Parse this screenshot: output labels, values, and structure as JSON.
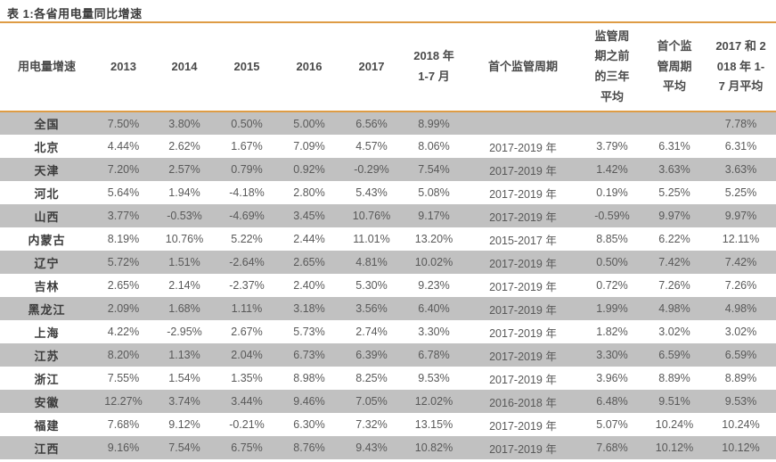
{
  "title": "表 1:各省用电量同比增速",
  "colors": {
    "accent": "#DE9C45",
    "row_stripe": "#C1C1C1",
    "title_text": "#3C3C3C",
    "header_text": "#4A4A4A",
    "data_text": "#595959"
  },
  "chart_data": {
    "type": "table",
    "title": "表 1:各省用电量同比增速",
    "columns": [
      "用电量增速",
      "2013",
      "2014",
      "2015",
      "2016",
      "2017",
      "2018 年 1-7 月",
      "首个监管周期",
      "监管周期之前的三年平均",
      "首个监管周期平均",
      "2017 和 2018 年 1-7 月平均"
    ],
    "rows": [
      [
        "全国",
        "7.50%",
        "3.80%",
        "0.50%",
        "5.00%",
        "6.56%",
        "8.99%",
        "",
        "",
        "",
        "7.78%"
      ],
      [
        "北京",
        "4.44%",
        "2.62%",
        "1.67%",
        "7.09%",
        "4.57%",
        "8.06%",
        "2017-2019 年",
        "3.79%",
        "6.31%",
        "6.31%"
      ],
      [
        "天津",
        "7.20%",
        "2.57%",
        "0.79%",
        "0.92%",
        "-0.29%",
        "7.54%",
        "2017-2019 年",
        "1.42%",
        "3.63%",
        "3.63%"
      ],
      [
        "河北",
        "5.64%",
        "1.94%",
        "-4.18%",
        "2.80%",
        "5.43%",
        "5.08%",
        "2017-2019 年",
        "0.19%",
        "5.25%",
        "5.25%"
      ],
      [
        "山西",
        "3.77%",
        "-0.53%",
        "-4.69%",
        "3.45%",
        "10.76%",
        "9.17%",
        "2017-2019 年",
        "-0.59%",
        "9.97%",
        "9.97%"
      ],
      [
        "内蒙古",
        "8.19%",
        "10.76%",
        "5.22%",
        "2.44%",
        "11.01%",
        "13.20%",
        "2015-2017 年",
        "8.85%",
        "6.22%",
        "12.11%"
      ],
      [
        "辽宁",
        "5.72%",
        "1.51%",
        "-2.64%",
        "2.65%",
        "4.81%",
        "10.02%",
        "2017-2019 年",
        "0.50%",
        "7.42%",
        "7.42%"
      ],
      [
        "吉林",
        "2.65%",
        "2.14%",
        "-2.37%",
        "2.40%",
        "5.30%",
        "9.23%",
        "2017-2019 年",
        "0.72%",
        "7.26%",
        "7.26%"
      ],
      [
        "黑龙江",
        "2.09%",
        "1.68%",
        "1.11%",
        "3.18%",
        "3.56%",
        "6.40%",
        "2017-2019 年",
        "1.99%",
        "4.98%",
        "4.98%"
      ],
      [
        "上海",
        "4.22%",
        "-2.95%",
        "2.67%",
        "5.73%",
        "2.74%",
        "3.30%",
        "2017-2019 年",
        "1.82%",
        "3.02%",
        "3.02%"
      ],
      [
        "江苏",
        "8.20%",
        "1.13%",
        "2.04%",
        "6.73%",
        "6.39%",
        "6.78%",
        "2017-2019 年",
        "3.30%",
        "6.59%",
        "6.59%"
      ],
      [
        "浙江",
        "7.55%",
        "1.54%",
        "1.35%",
        "8.98%",
        "8.25%",
        "9.53%",
        "2017-2019 年",
        "3.96%",
        "8.89%",
        "8.89%"
      ],
      [
        "安徽",
        "12.27%",
        "3.74%",
        "3.44%",
        "9.46%",
        "7.05%",
        "12.02%",
        "2016-2018 年",
        "6.48%",
        "9.51%",
        "9.53%"
      ],
      [
        "福建",
        "7.68%",
        "9.12%",
        "-0.21%",
        "6.30%",
        "7.32%",
        "13.15%",
        "2017-2019 年",
        "5.07%",
        "10.24%",
        "10.24%"
      ],
      [
        "江西",
        "9.16%",
        "7.54%",
        "6.75%",
        "8.76%",
        "9.43%",
        "10.82%",
        "2017-2019 年",
        "7.68%",
        "10.12%",
        "10.12%"
      ]
    ]
  }
}
